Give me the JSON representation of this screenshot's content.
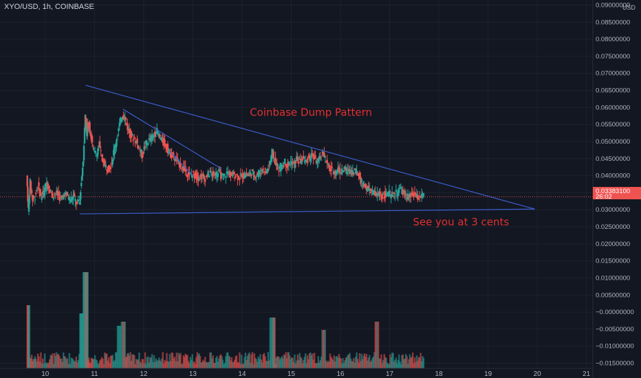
{
  "header": {
    "symbol_label": "XYO/USD, 1h, COINBASE"
  },
  "price_axis": {
    "currency": "USD"
  },
  "chart_data": {
    "type": "candlestick",
    "symbol": "XYO/USD",
    "interval": "1h",
    "exchange": "COINBASE",
    "ylim": [
      -0.0165,
      0.0915
    ],
    "y_ticks": [
      "0.09000000",
      "0.08500000",
      "0.08000000",
      "0.07500000",
      "0.07000000",
      "0.06500000",
      "0.06000000",
      "0.05500000",
      "0.05000000",
      "0.04500000",
      "0.04000000",
      "0.03500000",
      "0.03000000",
      "0.02500000",
      "0.02000000",
      "0.01500000",
      "0.01000000",
      "0.00500000",
      "−0.00000000",
      "−0.00500000",
      "−0.01000000",
      "−0.01500000"
    ],
    "y_tick_values": [
      0.09,
      0.085,
      0.08,
      0.075,
      0.07,
      0.065,
      0.06,
      0.055,
      0.05,
      0.045,
      0.04,
      0.035,
      0.03,
      0.025,
      0.02,
      0.015,
      0.01,
      0.005,
      0,
      -0.005,
      -0.01,
      -0.015
    ],
    "x_ticks": [
      "10",
      "11",
      "12",
      "13",
      "14",
      "15",
      "16",
      "17",
      "18",
      "19",
      "20",
      "21"
    ],
    "x_tick_values": [
      10,
      11,
      12,
      13,
      14,
      15,
      16,
      17,
      18,
      19,
      20,
      21
    ],
    "xlim": [
      9.08,
      21.13
    ],
    "last_price": "0.03383100",
    "countdown": "26:02",
    "price_path": [
      [
        9.63,
        0.04
      ],
      [
        9.66,
        0.03
      ],
      [
        9.7,
        0.038
      ],
      [
        9.75,
        0.033
      ],
      [
        9.8,
        0.034
      ],
      [
        9.86,
        0.037
      ],
      [
        9.92,
        0.034
      ],
      [
        9.98,
        0.035
      ],
      [
        10.04,
        0.038
      ],
      [
        10.1,
        0.036
      ],
      [
        10.16,
        0.034
      ],
      [
        10.22,
        0.035
      ],
      [
        10.28,
        0.034
      ],
      [
        10.34,
        0.033
      ],
      [
        10.4,
        0.035
      ],
      [
        10.46,
        0.034
      ],
      [
        10.52,
        0.033
      ],
      [
        10.58,
        0.034
      ],
      [
        10.64,
        0.032
      ],
      [
        10.7,
        0.032
      ],
      [
        10.74,
        0.038
      ],
      [
        10.78,
        0.045
      ],
      [
        10.82,
        0.058
      ],
      [
        10.85,
        0.052
      ],
      [
        10.88,
        0.056
      ],
      [
        10.93,
        0.052
      ],
      [
        10.98,
        0.048
      ],
      [
        11.04,
        0.046
      ],
      [
        11.1,
        0.049
      ],
      [
        11.16,
        0.045
      ],
      [
        11.22,
        0.043
      ],
      [
        11.28,
        0.042
      ],
      [
        11.34,
        0.043
      ],
      [
        11.4,
        0.047
      ],
      [
        11.46,
        0.051
      ],
      [
        11.52,
        0.055
      ],
      [
        11.58,
        0.058
      ],
      [
        11.63,
        0.057
      ],
      [
        11.68,
        0.054
      ],
      [
        11.74,
        0.052
      ],
      [
        11.8,
        0.051
      ],
      [
        11.86,
        0.05
      ],
      [
        11.92,
        0.048
      ],
      [
        11.98,
        0.046
      ],
      [
        12.04,
        0.049
      ],
      [
        12.1,
        0.05
      ],
      [
        12.16,
        0.051
      ],
      [
        12.22,
        0.052
      ],
      [
        12.28,
        0.053
      ],
      [
        12.34,
        0.051
      ],
      [
        12.4,
        0.05
      ],
      [
        12.46,
        0.049
      ],
      [
        12.52,
        0.047
      ],
      [
        12.58,
        0.046
      ],
      [
        12.64,
        0.045
      ],
      [
        12.7,
        0.044
      ],
      [
        12.76,
        0.043
      ],
      [
        12.82,
        0.042
      ],
      [
        12.88,
        0.041
      ],
      [
        12.94,
        0.04
      ],
      [
        13.0,
        0.0405
      ],
      [
        13.06,
        0.04
      ],
      [
        13.12,
        0.0395
      ],
      [
        13.18,
        0.04
      ],
      [
        13.24,
        0.039
      ],
      [
        13.3,
        0.04
      ],
      [
        13.36,
        0.041
      ],
      [
        13.42,
        0.04
      ],
      [
        13.48,
        0.0405
      ],
      [
        13.54,
        0.041
      ],
      [
        13.6,
        0.0395
      ],
      [
        13.66,
        0.04
      ],
      [
        13.72,
        0.041
      ],
      [
        13.78,
        0.04
      ],
      [
        13.84,
        0.0405
      ],
      [
        13.9,
        0.04
      ],
      [
        13.96,
        0.0395
      ],
      [
        14.02,
        0.04
      ],
      [
        14.08,
        0.0405
      ],
      [
        14.14,
        0.04
      ],
      [
        14.2,
        0.041
      ],
      [
        14.26,
        0.04
      ],
      [
        14.32,
        0.0405
      ],
      [
        14.38,
        0.041
      ],
      [
        14.44,
        0.042
      ],
      [
        14.5,
        0.041
      ],
      [
        14.56,
        0.043
      ],
      [
        14.62,
        0.047
      ],
      [
        14.66,
        0.045
      ],
      [
        14.7,
        0.043
      ],
      [
        14.76,
        0.042
      ],
      [
        14.82,
        0.043
      ],
      [
        14.88,
        0.044
      ],
      [
        14.94,
        0.043
      ],
      [
        15.0,
        0.044
      ],
      [
        15.06,
        0.043
      ],
      [
        15.12,
        0.045
      ],
      [
        15.18,
        0.044
      ],
      [
        15.24,
        0.045
      ],
      [
        15.3,
        0.044
      ],
      [
        15.36,
        0.045
      ],
      [
        15.42,
        0.046
      ],
      [
        15.48,
        0.045
      ],
      [
        15.54,
        0.044
      ],
      [
        15.6,
        0.045
      ],
      [
        15.66,
        0.047
      ],
      [
        15.72,
        0.044
      ],
      [
        15.78,
        0.042
      ],
      [
        15.84,
        0.0415
      ],
      [
        15.9,
        0.041
      ],
      [
        15.96,
        0.042
      ],
      [
        16.02,
        0.041
      ],
      [
        16.08,
        0.042
      ],
      [
        16.14,
        0.041
      ],
      [
        16.2,
        0.042
      ],
      [
        16.26,
        0.041
      ],
      [
        16.32,
        0.0415
      ],
      [
        16.38,
        0.04
      ],
      [
        16.44,
        0.038
      ],
      [
        16.5,
        0.037
      ],
      [
        16.56,
        0.036
      ],
      [
        16.62,
        0.0355
      ],
      [
        16.68,
        0.035
      ],
      [
        16.74,
        0.034
      ],
      [
        16.8,
        0.035
      ],
      [
        16.86,
        0.034
      ],
      [
        16.92,
        0.0345
      ],
      [
        16.98,
        0.035
      ],
      [
        17.04,
        0.034
      ],
      [
        17.1,
        0.0345
      ],
      [
        17.16,
        0.035
      ],
      [
        17.22,
        0.036
      ],
      [
        17.28,
        0.035
      ],
      [
        17.34,
        0.034
      ],
      [
        17.4,
        0.0335
      ],
      [
        17.46,
        0.0345
      ],
      [
        17.52,
        0.034
      ],
      [
        17.58,
        0.0335
      ],
      [
        17.64,
        0.034
      ],
      [
        17.7,
        0.0338
      ]
    ],
    "volume_spikes": [
      [
        9.63,
        0.6
      ],
      [
        10.74,
        0.5
      ],
      [
        10.82,
        1.0
      ],
      [
        11.52,
        0.35
      ],
      [
        11.58,
        0.4
      ],
      [
        14.62,
        0.45
      ],
      [
        15.66,
        0.3
      ],
      [
        16.74,
        0.4
      ]
    ],
    "trendlines": [
      {
        "name": "triangle-top",
        "points": [
          [
            10.82,
            0.0665
          ],
          [
            19.95,
            0.0302
          ]
        ],
        "color": "#3a5fcd"
      },
      {
        "name": "triangle-bottom",
        "points": [
          [
            10.7,
            0.0288
          ],
          [
            19.95,
            0.0302
          ]
        ],
        "color": "#3a5fcd"
      },
      {
        "name": "wedge-line",
        "points": [
          [
            11.58,
            0.0595
          ],
          [
            13.58,
            0.042
          ]
        ],
        "color": "#3a5fcd"
      },
      {
        "name": "channel-line",
        "points": [
          [
            12.55,
            0.0468
          ],
          [
            13.0,
            0.04
          ]
        ],
        "color": "#3a5fcd"
      }
    ],
    "annotations": [
      {
        "text": "Coinbase Dump Pattern",
        "x": 15.4,
        "y": 0.0575
      },
      {
        "text": "See you at 3 cents",
        "x": 18.45,
        "y": 0.0254
      }
    ],
    "colors": {
      "up": "#26a69a",
      "down": "#ef5350",
      "line": "#3a5fcd",
      "text": "#e0312e",
      "bg": "#131722"
    },
    "grid": true
  }
}
